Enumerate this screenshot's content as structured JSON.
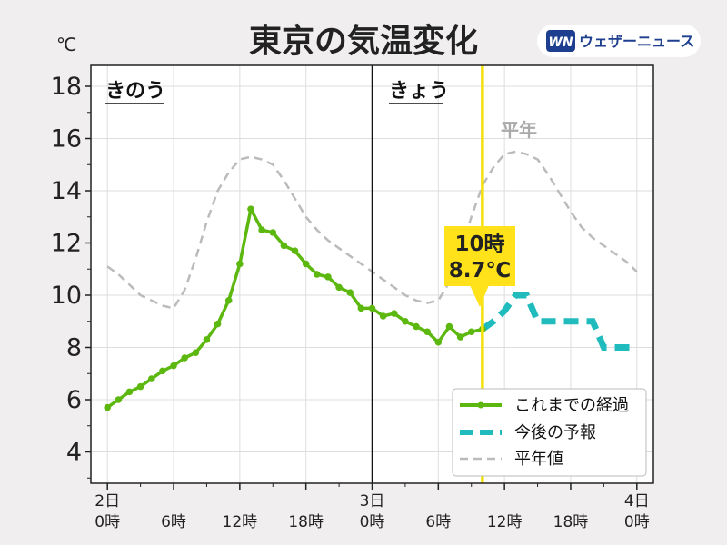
{
  "header": {
    "title": "東京の気温変化",
    "unit": "℃",
    "logo_mark": "WN",
    "logo_text": "ウェザーニュース"
  },
  "colors": {
    "observed": "#5cb80e",
    "forecast": "#20bcbd",
    "normal": "#bbbbbb",
    "now_line": "#f5e10a",
    "callout_bg": "#ffe21a"
  },
  "day_labels": {
    "yesterday": "きのう",
    "today": "きょう"
  },
  "normal_label": "平年",
  "callout": {
    "time": "10時",
    "temp": "8.7℃"
  },
  "legend": {
    "observed": "これまでの経過",
    "forecast": "今後の予報",
    "normal": "平年値"
  },
  "chart_data": {
    "type": "line",
    "title": "東京の気温変化",
    "ylabel": "℃",
    "ylim": [
      2.8,
      18.8
    ],
    "yticks": [
      4,
      6,
      8,
      10,
      12,
      14,
      16,
      18
    ],
    "xlim": [
      -1.5,
      49.5
    ],
    "xticks": [
      {
        "x": 0,
        "label": [
          "2日",
          "0時"
        ]
      },
      {
        "x": 6,
        "label": [
          "",
          "6時"
        ]
      },
      {
        "x": 12,
        "label": [
          "",
          "12時"
        ]
      },
      {
        "x": 18,
        "label": [
          "",
          "18時"
        ]
      },
      {
        "x": 24,
        "label": [
          "3日",
          "0時"
        ]
      },
      {
        "x": 30,
        "label": [
          "",
          "6時"
        ]
      },
      {
        "x": 36,
        "label": [
          "",
          "12時"
        ]
      },
      {
        "x": 42,
        "label": [
          "",
          "18時"
        ]
      },
      {
        "x": 48,
        "label": [
          "4日",
          "0時"
        ]
      }
    ],
    "now_x": 34,
    "day_divider_x": 24,
    "grid": true,
    "legend_position": "bottom-right",
    "series": [
      {
        "name": "これまでの経過",
        "style": "solid-markers",
        "x": [
          0,
          1,
          2,
          3,
          4,
          5,
          6,
          7,
          8,
          9,
          10,
          11,
          12,
          13,
          14,
          15,
          16,
          17,
          18,
          19,
          20,
          21,
          22,
          23,
          24,
          25,
          26,
          27,
          28,
          29,
          30,
          31,
          32,
          33,
          34
        ],
        "values": [
          5.7,
          6.0,
          6.3,
          6.5,
          6.8,
          7.1,
          7.3,
          7.6,
          7.8,
          8.3,
          8.9,
          9.8,
          11.2,
          13.3,
          12.5,
          12.4,
          11.9,
          11.7,
          11.2,
          10.8,
          10.7,
          10.3,
          10.1,
          9.5,
          9.5,
          9.2,
          9.3,
          9.0,
          8.8,
          8.6,
          8.2,
          8.8,
          8.4,
          8.6,
          8.7
        ]
      },
      {
        "name": "今後の予報",
        "style": "dashed",
        "x": [
          34,
          35,
          36,
          37,
          38,
          39,
          40,
          41,
          42,
          43,
          44,
          45,
          46,
          47,
          48
        ],
        "values": [
          8.7,
          9.0,
          9.4,
          10.0,
          10.0,
          9.0,
          9.0,
          9.0,
          9.0,
          9.0,
          9.0,
          8.0,
          8.0,
          8.0,
          8.0
        ]
      },
      {
        "name": "平年値",
        "style": "dashed-thin",
        "x": [
          0,
          1,
          2,
          3,
          4,
          5,
          6,
          7,
          8,
          9,
          10,
          11,
          12,
          13,
          14,
          15,
          16,
          17,
          18,
          19,
          20,
          21,
          22,
          23,
          24,
          25,
          26,
          27,
          28,
          29,
          30,
          31,
          32,
          33,
          34,
          35,
          36,
          37,
          38,
          39,
          40,
          41,
          42,
          43,
          44,
          45,
          46,
          47,
          48
        ],
        "values": [
          11.1,
          10.8,
          10.4,
          10.0,
          9.8,
          9.6,
          9.5,
          10.2,
          11.4,
          12.8,
          14.0,
          14.7,
          15.2,
          15.3,
          15.2,
          15.0,
          14.4,
          13.7,
          13.0,
          12.5,
          12.1,
          11.8,
          11.5,
          11.2,
          10.9,
          10.6,
          10.3,
          10.0,
          9.8,
          9.7,
          9.8,
          10.5,
          11.7,
          13.0,
          14.2,
          14.9,
          15.4,
          15.5,
          15.4,
          15.2,
          14.6,
          13.9,
          13.2,
          12.6,
          12.2,
          11.9,
          11.6,
          11.3,
          10.9
        ]
      }
    ]
  }
}
